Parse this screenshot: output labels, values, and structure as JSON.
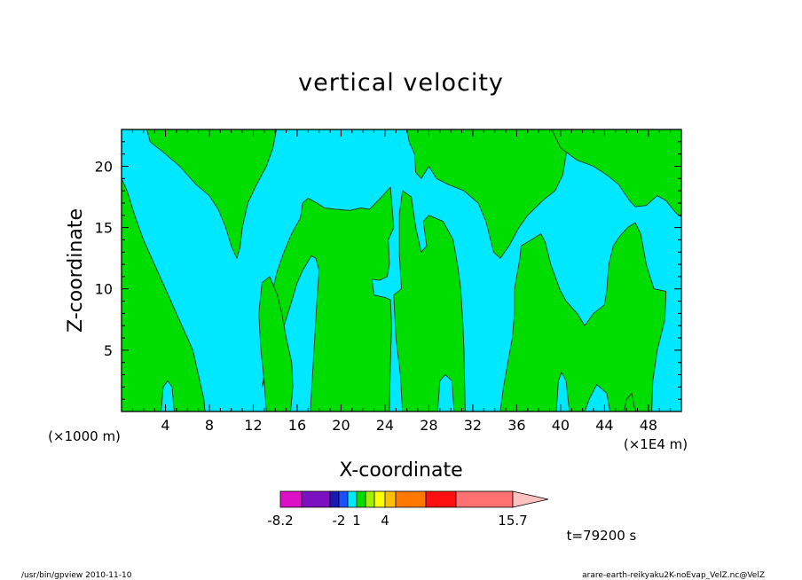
{
  "chart_data": {
    "type": "heatmap",
    "title": "vertical velocity",
    "xlabel": "X-coordinate",
    "ylabel": "Z-coordinate",
    "x_scale_label": "(×1000 m)",
    "x_offset_label": "(×1E4 m)",
    "xlim": [
      0,
      51
    ],
    "ylim": [
      0,
      23
    ],
    "x_ticks": [
      "4",
      "8",
      "12",
      "16",
      "20",
      "24",
      "28",
      "32",
      "36",
      "40",
      "44",
      "48"
    ],
    "y_ticks": [
      "5",
      "10",
      "15",
      "20"
    ],
    "x_tick_values": [
      4,
      8,
      12,
      16,
      20,
      24,
      28,
      32,
      36,
      40,
      44,
      48
    ],
    "y_tick_values": [
      5,
      10,
      15,
      20
    ],
    "background_color": "#00e8ff",
    "region_color": "#00dd00",
    "regions": [
      [
        [
          0,
          19
        ],
        [
          0.5,
          18
        ],
        [
          1.2,
          16
        ],
        [
          2,
          14
        ],
        [
          3,
          12
        ],
        [
          4,
          10
        ],
        [
          5,
          8
        ],
        [
          6,
          6
        ],
        [
          6.5,
          5
        ],
        [
          7,
          3
        ],
        [
          7.5,
          1
        ],
        [
          7.6,
          0
        ],
        [
          4.8,
          0
        ],
        [
          4.6,
          2
        ],
        [
          4.2,
          2.5
        ],
        [
          3.8,
          2
        ],
        [
          3.6,
          0
        ],
        [
          0,
          0
        ]
      ],
      [
        [
          2.3,
          23
        ],
        [
          2.6,
          22
        ],
        [
          4,
          21
        ],
        [
          5.3,
          20
        ],
        [
          6.8,
          18.5
        ],
        [
          8,
          17.6
        ],
        [
          8.8,
          16.5
        ],
        [
          9.5,
          15
        ],
        [
          10,
          13.5
        ],
        [
          10.5,
          12.5
        ],
        [
          10.8,
          13.4
        ],
        [
          11,
          15
        ],
        [
          11.5,
          17
        ],
        [
          12.3,
          18.5
        ],
        [
          13.2,
          20
        ],
        [
          13.8,
          21.5
        ],
        [
          14.1,
          23
        ]
      ],
      [
        [
          12.8,
          2
        ],
        [
          13.2,
          4
        ],
        [
          13.6,
          5.5
        ],
        [
          13.5,
          8
        ],
        [
          13.8,
          10
        ],
        [
          14.2,
          11.5
        ],
        [
          14.8,
          13
        ],
        [
          15.5,
          14.5
        ],
        [
          16.3,
          15.8
        ],
        [
          16.5,
          17
        ],
        [
          17,
          17.4
        ],
        [
          17.8,
          17
        ],
        [
          18.5,
          16.6
        ],
        [
          19.5,
          16.5
        ],
        [
          20.8,
          16.4
        ],
        [
          21.8,
          16.6
        ],
        [
          22.6,
          16.5
        ],
        [
          23.7,
          17.5
        ],
        [
          24.5,
          18.3
        ],
        [
          24.8,
          15
        ],
        [
          24.3,
          14
        ],
        [
          24.4,
          12
        ],
        [
          24.2,
          11
        ],
        [
          23.5,
          10.7
        ],
        [
          22.8,
          10.8
        ],
        [
          23,
          9.5
        ],
        [
          24,
          9.3
        ],
        [
          24.5,
          9.1
        ],
        [
          24.6,
          7
        ],
        [
          24.5,
          4
        ],
        [
          24.4,
          0
        ],
        [
          17.2,
          0
        ],
        [
          17.4,
          3
        ],
        [
          17.6,
          6
        ],
        [
          17.8,
          9
        ],
        [
          18,
          11.5
        ],
        [
          17.7,
          12.5
        ],
        [
          17.3,
          12.7
        ],
        [
          16.5,
          11.5
        ],
        [
          16,
          10.5
        ],
        [
          15.5,
          9
        ],
        [
          14.8,
          7
        ],
        [
          14.2,
          5.5
        ],
        [
          13.8,
          4
        ],
        [
          13.2,
          3
        ]
      ],
      [
        [
          15.4,
          0
        ],
        [
          15.6,
          2
        ],
        [
          15.5,
          4
        ],
        [
          15,
          6
        ],
        [
          14.6,
          8
        ],
        [
          14.2,
          9.5
        ],
        [
          13.5,
          11
        ],
        [
          12.8,
          10.5
        ],
        [
          12.5,
          8
        ],
        [
          12.7,
          5
        ],
        [
          13,
          2.5
        ],
        [
          13.2,
          0
        ]
      ],
      [
        [
          24.8,
          9.5
        ],
        [
          25.5,
          10
        ],
        [
          25.3,
          13
        ],
        [
          25.3,
          16
        ],
        [
          25.6,
          18
        ],
        [
          26.4,
          17.5
        ],
        [
          26.8,
          15
        ],
        [
          27.3,
          13
        ],
        [
          27.8,
          13.5
        ],
        [
          27.5,
          15.5
        ],
        [
          28,
          16
        ],
        [
          29.3,
          15.5
        ],
        [
          30.2,
          14
        ],
        [
          30.6,
          12
        ],
        [
          30.9,
          10
        ],
        [
          31.1,
          7
        ],
        [
          31.2,
          5
        ],
        [
          31.3,
          0
        ],
        [
          30.3,
          0
        ],
        [
          30.1,
          2.5
        ],
        [
          29.5,
          3
        ],
        [
          29,
          2.5
        ],
        [
          28.8,
          0
        ],
        [
          25.6,
          0
        ],
        [
          25.4,
          3
        ],
        [
          25,
          6
        ]
      ],
      [
        [
          26,
          23
        ],
        [
          26.2,
          22
        ],
        [
          26.7,
          21
        ],
        [
          26.8,
          19.5
        ],
        [
          27.3,
          19
        ],
        [
          28,
          20
        ],
        [
          28.7,
          19
        ],
        [
          29.8,
          18.5
        ],
        [
          31.2,
          18
        ],
        [
          32.5,
          17
        ],
        [
          33.2,
          15.5
        ],
        [
          33.9,
          13
        ],
        [
          34.5,
          12.5
        ],
        [
          35.3,
          13.5
        ],
        [
          36.2,
          15
        ],
        [
          37,
          16
        ],
        [
          38.5,
          17.3
        ],
        [
          39.5,
          18
        ],
        [
          40.2,
          19.3
        ],
        [
          40.5,
          21
        ],
        [
          40.3,
          23
        ]
      ],
      [
        [
          34.5,
          0
        ],
        [
          34.8,
          2
        ],
        [
          35.2,
          4
        ],
        [
          35.6,
          6
        ],
        [
          35.8,
          8
        ],
        [
          35.8,
          10
        ],
        [
          36,
          11
        ],
        [
          36.3,
          12.5
        ],
        [
          36.4,
          13.5
        ],
        [
          37.5,
          14.1
        ],
        [
          38.2,
          14.5
        ],
        [
          38.6,
          13.8
        ],
        [
          39.1,
          12
        ],
        [
          39.9,
          10
        ],
        [
          40.5,
          9
        ],
        [
          41.5,
          8
        ],
        [
          42.2,
          7
        ],
        [
          43,
          8
        ],
        [
          44,
          8.7
        ],
        [
          44.2,
          9.8
        ],
        [
          44.3,
          11
        ],
        [
          44.4,
          12
        ],
        [
          44.8,
          13.5
        ],
        [
          45.4,
          14.3
        ],
        [
          46.1,
          15
        ],
        [
          46.8,
          15.4
        ],
        [
          47.3,
          14.5
        ],
        [
          47.8,
          12
        ],
        [
          48.5,
          10
        ],
        [
          49.6,
          9.8
        ],
        [
          49.5,
          7.5
        ],
        [
          48.8,
          5
        ],
        [
          48.4,
          2.5
        ],
        [
          48.3,
          0
        ],
        [
          44.5,
          0
        ],
        [
          44.2,
          1.5
        ],
        [
          43.3,
          2.2
        ],
        [
          42.6,
          1
        ],
        [
          42.2,
          0
        ],
        [
          40.8,
          0
        ],
        [
          40.5,
          2.5
        ],
        [
          40.1,
          3.2
        ],
        [
          39.8,
          2.5
        ],
        [
          39.6,
          0
        ]
      ],
      [
        [
          39.2,
          23
        ],
        [
          40,
          21.5
        ],
        [
          41.5,
          20.5
        ],
        [
          43,
          20
        ],
        [
          44.2,
          19.3
        ],
        [
          45.3,
          18.5
        ],
        [
          46.2,
          17.3
        ],
        [
          46.8,
          16.7
        ],
        [
          47.8,
          16.8
        ],
        [
          48.8,
          17.6
        ],
        [
          49.6,
          17.2
        ],
        [
          50.5,
          16.2
        ],
        [
          51,
          15.9
        ],
        [
          51,
          23
        ]
      ],
      [
        [
          45.8,
          0
        ],
        [
          46,
          1
        ],
        [
          46.5,
          1.5
        ],
        [
          46.7,
          0.4
        ],
        [
          46.9,
          0
        ]
      ]
    ],
    "colorbar": {
      "labels": [
        "-8.2",
        "-2",
        "1",
        "4",
        "15.7"
      ],
      "colors": [
        "#dd10c8",
        "#7a10c0",
        "#1a1ab0",
        "#1a50ff",
        "#00e8ff",
        "#00dd00",
        "#a0f000",
        "#ffff00",
        "#ffc000",
        "#ff7800",
        "#ff1010",
        "#ff7070",
        "#ffc0c0"
      ]
    },
    "time_label": "t=79200 s"
  },
  "footer": {
    "left": "/usr/bin/gpview 2010-11-10",
    "right": "arare-earth-reikyaku2K-noEvap_VelZ.nc@VelZ"
  }
}
